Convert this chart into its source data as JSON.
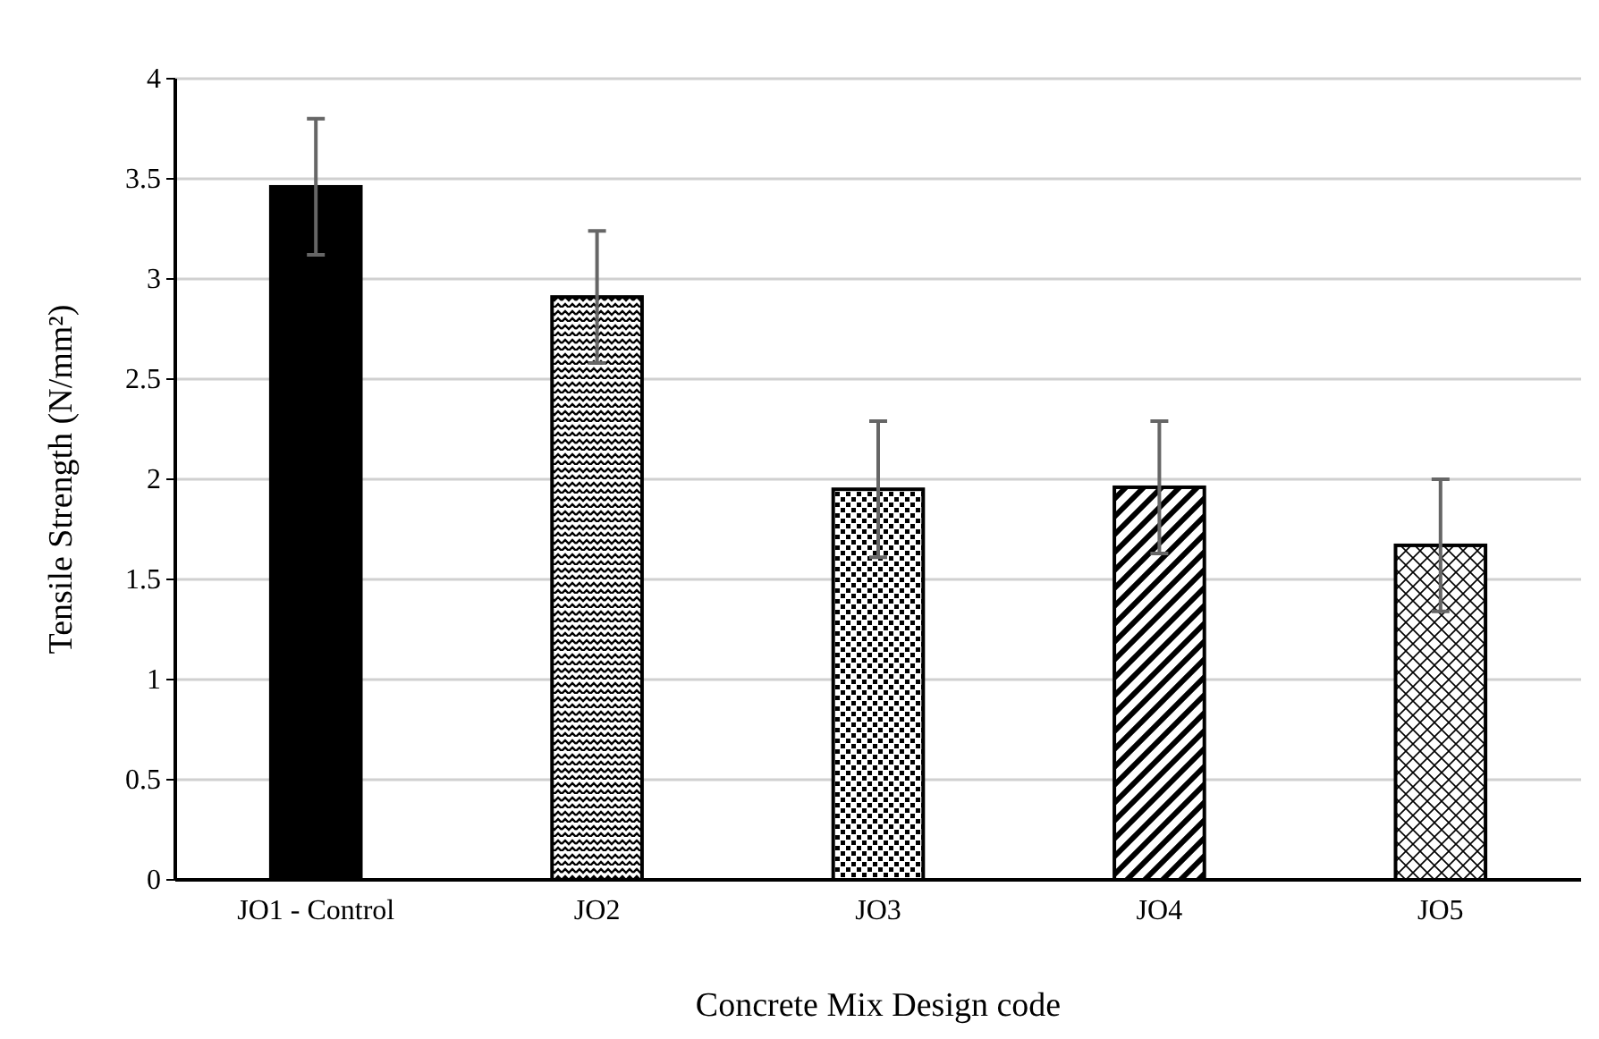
{
  "chart_data": {
    "type": "bar",
    "xlabel": "Concrete Mix Design code",
    "ylabel": "Tensile Strength (N/mm²)",
    "categories": [
      "JO1 - Control",
      "JO2",
      "JO3",
      "JO4",
      "JO5"
    ],
    "values": [
      3.46,
      2.91,
      1.95,
      1.96,
      1.67
    ],
    "errors": [
      0.34,
      0.33,
      0.34,
      0.33,
      0.33
    ],
    "colors": [
      "#000000",
      "#000000",
      "#000000",
      "#000000",
      "#000000"
    ],
    "ylim": [
      0,
      4
    ],
    "yticks": [
      0,
      0.5,
      1,
      1.5,
      2,
      2.5,
      3,
      3.5,
      4
    ],
    "grid": "y"
  }
}
